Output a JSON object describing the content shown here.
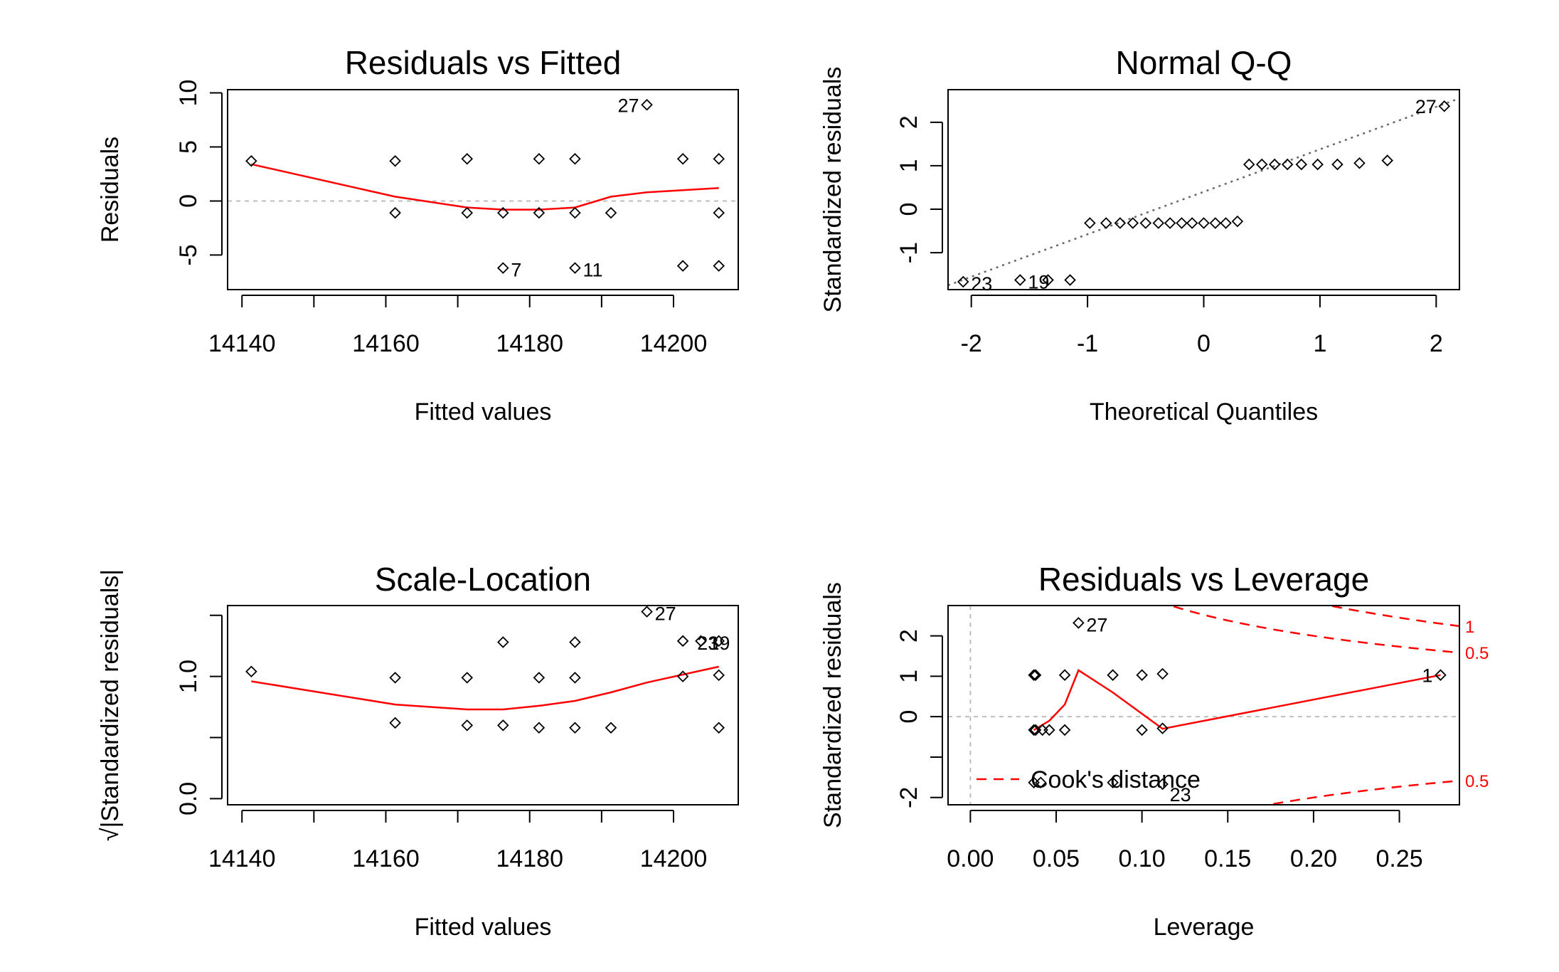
{
  "colors": {
    "smooth": "#ff0000",
    "refline": "#bebebe",
    "qqline": "#666666",
    "cook": "#ff0000",
    "points": "#000000"
  },
  "chart_data": [
    {
      "type": "scatter",
      "title": "Residuals vs Fitted",
      "xlabel": "Fitted values",
      "ylabel": "Residuals",
      "xlim": [
        14138,
        14209
      ],
      "ylim": [
        -8.2,
        10.3
      ],
      "xticks": [
        14140,
        14160,
        14180,
        14200
      ],
      "xtick_labels": [
        "14140",
        "14160",
        "14180",
        "14200"
      ],
      "xticks_unlabeled": [
        14150,
        14170,
        14190
      ],
      "yticks": [
        -5,
        0,
        5,
        10
      ],
      "ytick_labels": [
        "-5",
        "0",
        "5",
        "10"
      ],
      "hline": 0,
      "points": [
        {
          "x": 14141.3,
          "y": 3.7
        },
        {
          "x": 14161.3,
          "y": 3.7
        },
        {
          "x": 14161.3,
          "y": -1.1
        },
        {
          "x": 14171.3,
          "y": 3.9
        },
        {
          "x": 14171.3,
          "y": -1.1
        },
        {
          "x": 14176.3,
          "y": -1.1
        },
        {
          "x": 14176.3,
          "y": -6.2
        },
        {
          "x": 14181.3,
          "y": 3.9
        },
        {
          "x": 14181.3,
          "y": -1.1
        },
        {
          "x": 14186.3,
          "y": 3.9
        },
        {
          "x": 14186.3,
          "y": -1.1
        },
        {
          "x": 14186.3,
          "y": -6.2
        },
        {
          "x": 14191.3,
          "y": -1.1
        },
        {
          "x": 14196.3,
          "y": 8.9
        },
        {
          "x": 14201.3,
          "y": 3.9
        },
        {
          "x": 14201.3,
          "y": -6.0
        },
        {
          "x": 14206.3,
          "y": 3.9
        },
        {
          "x": 14206.3,
          "y": -1.1
        },
        {
          "x": 14206.3,
          "y": -6.0
        }
      ],
      "smooth": {
        "x": [
          14141.3,
          14161.3,
          14171.3,
          14176.3,
          14181.3,
          14186.3,
          14191.3,
          14196.3,
          14206.3
        ],
        "y": [
          3.4,
          0.4,
          -0.6,
          -0.8,
          -0.8,
          -0.6,
          0.4,
          0.8,
          1.2
        ]
      },
      "annotations": [
        {
          "label": "27",
          "x": 14196.3,
          "y": 8.9,
          "pos": "left"
        },
        {
          "label": "7",
          "x": 14176.3,
          "y": -6.2,
          "pos": "right"
        },
        {
          "label": "11",
          "x": 14186.3,
          "y": -6.2,
          "pos": "right"
        }
      ]
    },
    {
      "type": "scatter",
      "title": "Normal Q-Q",
      "xlabel": "Theoretical Quantiles",
      "ylabel": "Standardized residuals",
      "xlim": [
        -2.2,
        2.2
      ],
      "ylim": [
        -1.85,
        2.75
      ],
      "xticks": [
        -2,
        -1,
        0,
        1,
        2
      ],
      "xtick_labels": [
        "-2",
        "-1",
        "0",
        "1",
        "2"
      ],
      "yticks": [
        -1,
        0,
        1,
        2
      ],
      "ytick_labels": [
        "-1",
        "0",
        "1",
        "2"
      ],
      "qqline": {
        "x": [
          -2.2,
          2.2
        ],
        "y": [
          -1.75,
          2.55
        ]
      },
      "points": [
        {
          "x": -2.07,
          "y": -1.67
        },
        {
          "x": -1.58,
          "y": -1.63
        },
        {
          "x": -1.34,
          "y": -1.63
        },
        {
          "x": -1.15,
          "y": -1.63
        },
        {
          "x": -0.98,
          "y": -0.32
        },
        {
          "x": -0.84,
          "y": -0.32
        },
        {
          "x": -0.72,
          "y": -0.32
        },
        {
          "x": -0.61,
          "y": -0.32
        },
        {
          "x": -0.5,
          "y": -0.32
        },
        {
          "x": -0.39,
          "y": -0.32
        },
        {
          "x": -0.29,
          "y": -0.32
        },
        {
          "x": -0.19,
          "y": -0.32
        },
        {
          "x": -0.1,
          "y": -0.32
        },
        {
          "x": 0.0,
          "y": -0.32
        },
        {
          "x": 0.1,
          "y": -0.32
        },
        {
          "x": 0.19,
          "y": -0.32
        },
        {
          "x": 0.29,
          "y": -0.28
        },
        {
          "x": 0.39,
          "y": 1.03
        },
        {
          "x": 0.5,
          "y": 1.03
        },
        {
          "x": 0.61,
          "y": 1.03
        },
        {
          "x": 0.72,
          "y": 1.03
        },
        {
          "x": 0.84,
          "y": 1.03
        },
        {
          "x": 0.98,
          "y": 1.03
        },
        {
          "x": 1.15,
          "y": 1.03
        },
        {
          "x": 1.34,
          "y": 1.06
        },
        {
          "x": 1.58,
          "y": 1.12
        },
        {
          "x": 2.07,
          "y": 2.37
        }
      ],
      "annotations": [
        {
          "label": "27",
          "x": 2.07,
          "y": 2.37,
          "pos": "left"
        },
        {
          "label": "23",
          "x": -2.07,
          "y": -1.67,
          "pos": "right"
        },
        {
          "label": "19",
          "x": -1.58,
          "y": -1.63,
          "pos": "right"
        }
      ]
    },
    {
      "type": "scatter",
      "title": "Scale-Location",
      "xlabel": "Fitted values",
      "ylabel": "√|Standardized residuals|",
      "xlim": [
        14138,
        14209
      ],
      "ylim": [
        -0.05,
        1.58
      ],
      "xticks": [
        14140,
        14160,
        14180,
        14200
      ],
      "xtick_labels": [
        "14140",
        "14160",
        "14180",
        "14200"
      ],
      "xticks_unlabeled": [
        14150,
        14170,
        14190
      ],
      "yticks": [
        0.0,
        0.5,
        1.0,
        1.5
      ],
      "ytick_labels": [
        "0.0",
        "",
        "1.0",
        ""
      ],
      "points": [
        {
          "x": 14141.3,
          "y": 1.04
        },
        {
          "x": 14161.3,
          "y": 0.99
        },
        {
          "x": 14161.3,
          "y": 0.62
        },
        {
          "x": 14171.3,
          "y": 0.99
        },
        {
          "x": 14171.3,
          "y": 0.6
        },
        {
          "x": 14176.3,
          "y": 1.28
        },
        {
          "x": 14176.3,
          "y": 0.6
        },
        {
          "x": 14181.3,
          "y": 0.99
        },
        {
          "x": 14181.3,
          "y": 0.58
        },
        {
          "x": 14186.3,
          "y": 1.28
        },
        {
          "x": 14186.3,
          "y": 0.99
        },
        {
          "x": 14186.3,
          "y": 0.58
        },
        {
          "x": 14191.3,
          "y": 0.58
        },
        {
          "x": 14196.3,
          "y": 1.53
        },
        {
          "x": 14201.3,
          "y": 1.29
        },
        {
          "x": 14201.3,
          "y": 1.0
        },
        {
          "x": 14203.8,
          "y": 1.29
        },
        {
          "x": 14206.3,
          "y": 1.29
        },
        {
          "x": 14206.3,
          "y": 1.01
        },
        {
          "x": 14206.3,
          "y": 0.58
        }
      ],
      "smooth": {
        "x": [
          14141.3,
          14161.3,
          14171.3,
          14176.3,
          14181.3,
          14186.3,
          14191.3,
          14196.3,
          14206.3
        ],
        "y": [
          0.96,
          0.77,
          0.73,
          0.73,
          0.76,
          0.8,
          0.87,
          0.95,
          1.08
        ]
      },
      "annotations": [
        {
          "label": "27",
          "x": 14196.3,
          "y": 1.53,
          "pos": "right"
        },
        {
          "label": "23",
          "x": 14202.2,
          "y": 1.29,
          "pos": "right"
        },
        {
          "label": "19",
          "x": 14203.8,
          "y": 1.29,
          "pos": "right"
        }
      ]
    },
    {
      "type": "scatter",
      "title": "Residuals vs Leverage",
      "xlabel": "Leverage",
      "ylabel": "Standardized residuals",
      "xlim": [
        -0.013,
        0.285
      ],
      "ylim": [
        -2.18,
        2.75
      ],
      "xticks": [
        0.0,
        0.05,
        0.1,
        0.15,
        0.2,
        0.25
      ],
      "xtick_labels": [
        "0.00",
        "0.05",
        "0.10",
        "0.15",
        "0.20",
        "0.25"
      ],
      "yticks": [
        -2,
        -1,
        0,
        1,
        2
      ],
      "ytick_labels": [
        "-2",
        "",
        "0",
        "1",
        "2"
      ],
      "hline": 0,
      "vline": 0,
      "points": [
        {
          "x": 0.037,
          "y": 1.03
        },
        {
          "x": 0.038,
          "y": 1.03
        },
        {
          "x": 0.055,
          "y": 1.03
        },
        {
          "x": 0.083,
          "y": 1.03
        },
        {
          "x": 0.1,
          "y": 1.03
        },
        {
          "x": 0.112,
          "y": 1.06
        },
        {
          "x": 0.274,
          "y": 1.03
        },
        {
          "x": 0.063,
          "y": 2.32
        },
        {
          "x": 0.037,
          "y": -0.33
        },
        {
          "x": 0.038,
          "y": -0.33
        },
        {
          "x": 0.042,
          "y": -0.33
        },
        {
          "x": 0.046,
          "y": -0.33
        },
        {
          "x": 0.055,
          "y": -0.33
        },
        {
          "x": 0.1,
          "y": -0.33
        },
        {
          "x": 0.112,
          "y": -0.29
        },
        {
          "x": 0.037,
          "y": -1.63
        },
        {
          "x": 0.041,
          "y": -1.63
        },
        {
          "x": 0.083,
          "y": -1.63
        },
        {
          "x": 0.112,
          "y": -1.67
        }
      ],
      "smooth": {
        "x": [
          0.037,
          0.046,
          0.055,
          0.063,
          0.083,
          0.112,
          0.274
        ],
        "y": [
          -0.33,
          -0.1,
          0.3,
          1.15,
          0.6,
          -0.3,
          1.03
        ]
      },
      "cooks_curves": [
        {
          "level": 0.5,
          "sign": 1,
          "label": "0.5"
        },
        {
          "level": 1,
          "sign": 1,
          "label": "1"
        },
        {
          "level": 0.5,
          "sign": -1,
          "label": "0.5"
        }
      ],
      "legend": {
        "label": "Cook's distance",
        "position": "bottom-left"
      },
      "annotations": [
        {
          "label": "27",
          "x": 0.063,
          "y": 2.32,
          "pos": "right"
        },
        {
          "label": "1",
          "x": 0.274,
          "y": 1.03,
          "pos": "left"
        },
        {
          "label": "23",
          "x": 0.112,
          "y": -1.67,
          "pos": "below-right"
        }
      ]
    }
  ]
}
